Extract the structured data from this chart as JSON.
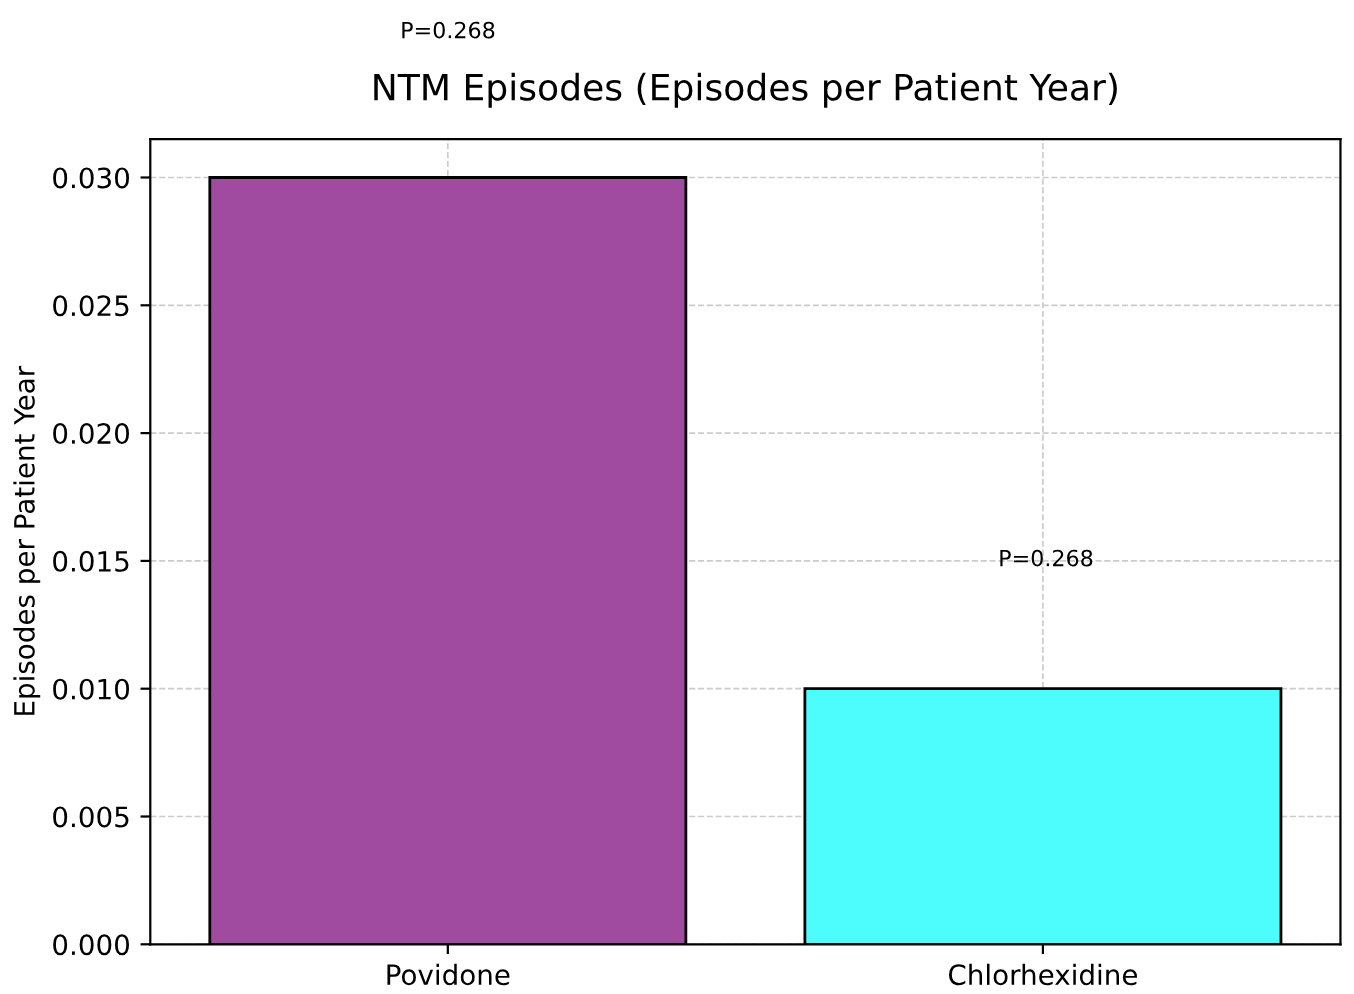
{
  "chart_data": {
    "type": "bar",
    "title": "NTM Episodes (Episodes per Patient Year)",
    "ylabel": "Episodes per Patient Year",
    "categories": [
      "Povidone",
      "Chlorhexidine"
    ],
    "values": [
      0.03,
      0.01
    ],
    "colors": [
      "#a04aa0",
      "#4dfdfd"
    ],
    "ylim": [
      0,
      0.0315
    ],
    "yticks": [
      {
        "value": 0,
        "label": "0.000"
      },
      {
        "value": 0.005,
        "label": "0.005"
      },
      {
        "value": 0.01,
        "label": "0.010"
      },
      {
        "value": 0.015,
        "label": "0.015"
      },
      {
        "value": 0.02,
        "label": "0.020"
      },
      {
        "value": 0.025,
        "label": "0.025"
      },
      {
        "value": 0.03,
        "label": "0.030"
      }
    ],
    "grid": true,
    "annotations": [
      "P=0.268",
      "P=0.268"
    ]
  }
}
